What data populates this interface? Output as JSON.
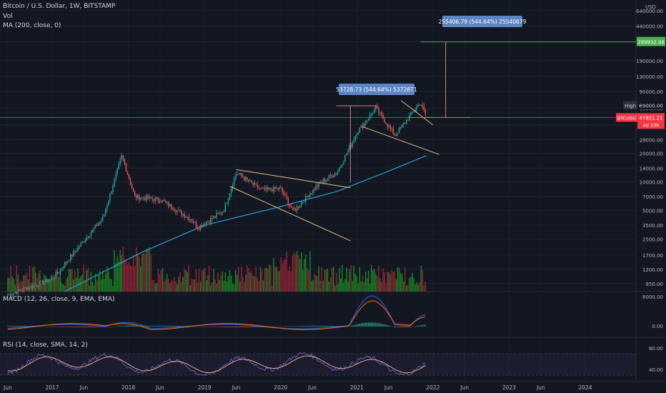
{
  "header": {
    "symbol_line": "Bitcoin / U.S. Dollar, 1W, BITSTAMP",
    "vol_label": "Vol",
    "ma_label": "MA (200, close, 0)",
    "macd_label": "MACD (12, 26, close, 9, EMA, EMA)",
    "rsi_label": "RSI (14, close, SMA, 14, 2)"
  },
  "axis": {
    "currency": "USD",
    "price_ticks": [
      "640000.00",
      "440000.00",
      "300000.00",
      "190000.00",
      "130000.00",
      "90000.00",
      "60000.00",
      "40000.00",
      "28000.00",
      "20000.00",
      "14000.00",
      "10000.00",
      "7000.00",
      "5000.00",
      "3500.00",
      "2500.00",
      "1700.00",
      "1200.00",
      "850.00"
    ],
    "macd_ticks": [
      "8000.00",
      "0.00"
    ],
    "rsi_ticks": [
      "80.00",
      "40.00"
    ],
    "time_ticks": [
      "Jun",
      "2017",
      "Jun",
      "2018",
      "Jun",
      "2019",
      "Jun",
      "2020",
      "Jun",
      "2021",
      "Jun",
      "2022",
      "Jun",
      "2023",
      "Jun",
      "2024"
    ]
  },
  "labels": {
    "target_price": "299932.98",
    "high_label": "High",
    "high_price": "69000.00",
    "symbol_tag": "BTCUSD",
    "last_price": "47851.21",
    "countdown": "4d 23h",
    "measure_1": "53728.73 (544.64%) 5372871",
    "measure_2": "255406.79 (544.64%) 25540679"
  },
  "colors": {
    "background": "#131722",
    "up": "#26a69a",
    "down": "#ef5350",
    "vol_up": "#1c9b22",
    "vol_down": "#b0243a",
    "ma": "#2a9fd6",
    "trend": "#e3c07a",
    "macd": "#2962ff",
    "signal": "#ff6d00",
    "rsi": "#7e57c2",
    "rsi_ma": "#e3c07a",
    "measure_box": "#5b85c4",
    "target_line": "#4caf50",
    "price_tag": "#f23645"
  },
  "chart_data": {
    "type": "candlestick",
    "title": "Bitcoin / U.S. Dollar, 1W, BITSTAMP",
    "y_scale": "log",
    "ylim": [
      700,
      800000
    ],
    "x_range": [
      "2016-05",
      "2024-09"
    ],
    "key_points": [
      {
        "date": "2016-06",
        "price": 650
      },
      {
        "date": "2017-01",
        "price": 950
      },
      {
        "date": "2017-09",
        "price": 4200
      },
      {
        "date": "2017-12",
        "price": 19000
      },
      {
        "date": "2018-02",
        "price": 7000
      },
      {
        "date": "2018-06",
        "price": 6500
      },
      {
        "date": "2018-11",
        "price": 4000
      },
      {
        "date": "2018-12",
        "price": 3300
      },
      {
        "date": "2019-04",
        "price": 5000
      },
      {
        "date": "2019-06",
        "price": 12500
      },
      {
        "date": "2019-10",
        "price": 8200
      },
      {
        "date": "2020-01",
        "price": 8500
      },
      {
        "date": "2020-03",
        "price": 4900
      },
      {
        "date": "2020-07",
        "price": 9500
      },
      {
        "date": "2020-10",
        "price": 13000
      },
      {
        "date": "2021-01",
        "price": 33000
      },
      {
        "date": "2021-04",
        "price": 60000
      },
      {
        "date": "2021-07",
        "price": 31000
      },
      {
        "date": "2021-11",
        "price": 69000
      },
      {
        "date": "2021-12",
        "price": 47851.21
      }
    ],
    "ma200_points": [
      {
        "date": "2017-03",
        "price": 700
      },
      {
        "date": "2018-03",
        "price": 1800
      },
      {
        "date": "2019-01",
        "price": 3500
      },
      {
        "date": "2020-01",
        "price": 5500
      },
      {
        "date": "2020-10",
        "price": 8000
      },
      {
        "date": "2021-06",
        "price": 13000
      },
      {
        "date": "2021-12",
        "price": 19000
      }
    ],
    "measurements": [
      {
        "label": "53728.73 (544.64%) 5372871"
      },
      {
        "label": "255406.79 (544.64%) 25540679",
        "target": 299932.98
      }
    ],
    "high": 69000,
    "last": 47851.21
  }
}
